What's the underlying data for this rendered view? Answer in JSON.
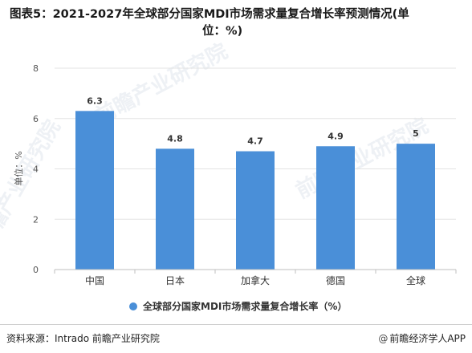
{
  "title": "图表5：2021-2027年全球部分国家MDI市场需求量复合增长率预测情况(单位：%)",
  "title_lines": [
    "图表5：2021-2027年全球部分国家MDI市场需求量复合增长率预测情况(单",
    "位：%)"
  ],
  "watermark": "前瞻产业研究院",
  "footer": {
    "source": "资料来源：Intrado 前瞻产业研究院",
    "brand_prefix": "@",
    "brand": "前瞻经济学人APP"
  },
  "colors": {
    "bar": "#4a8fd8",
    "grid": "#e3e3e3",
    "axis": "#bfbfbf"
  },
  "chart_data": {
    "type": "bar",
    "title": "图表5：2021-2027年全球部分国家MDI市场需求量复合增长率预测情况(单位：%)",
    "categories": [
      "中国",
      "日本",
      "加拿大",
      "德国",
      "全球"
    ],
    "series": [
      {
        "name": "全球部分国家MDI市场需求量复合增长率（%）",
        "values": [
          6.3,
          4.8,
          4.7,
          4.9,
          5
        ]
      }
    ],
    "data_labels": [
      "6.3",
      "4.8",
      "4.7",
      "4.9",
      "5"
    ],
    "ylabel": "单位：%",
    "xlabel": "",
    "ylim": [
      0,
      8
    ],
    "yticks": [
      0,
      2,
      4,
      6,
      8
    ],
    "grid": true,
    "legend": "bottom-center"
  }
}
